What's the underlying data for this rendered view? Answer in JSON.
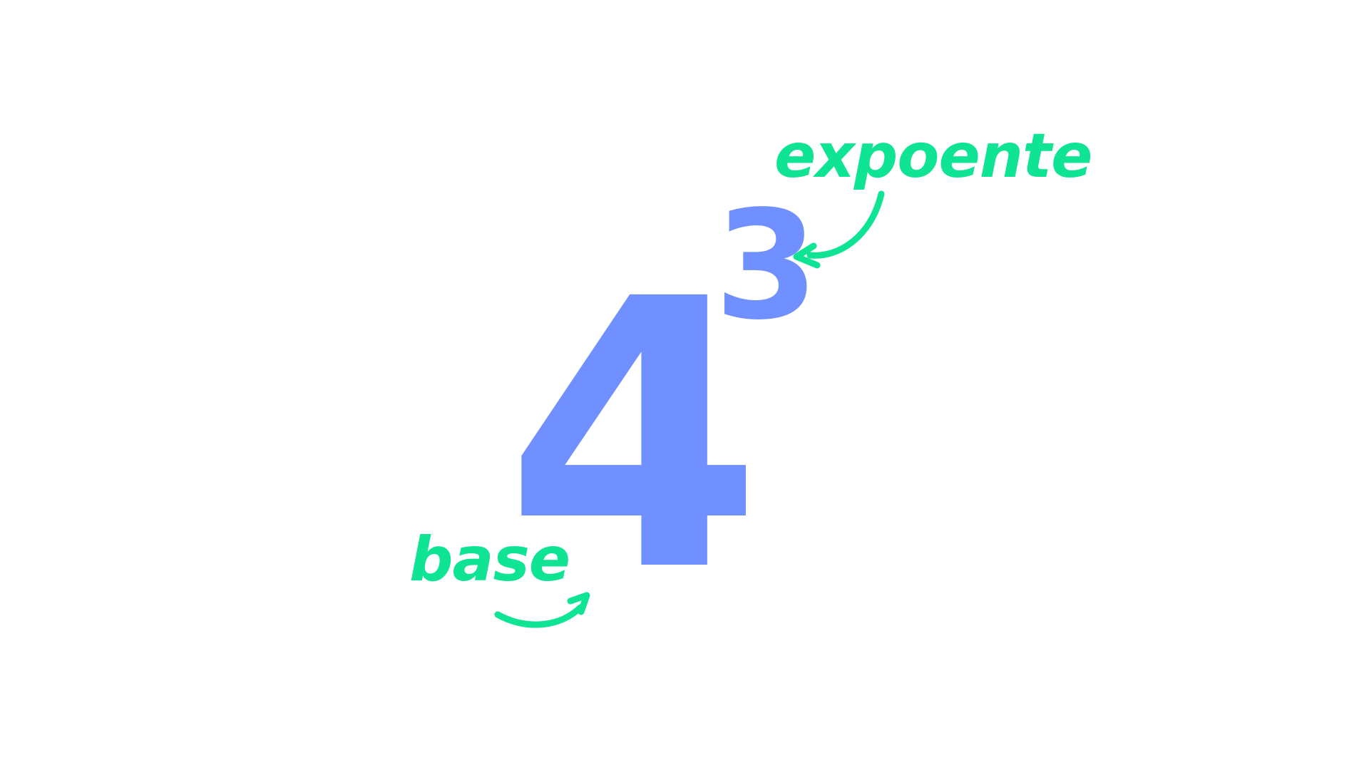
{
  "expression": {
    "base": "4",
    "exponent": "3"
  },
  "labels": {
    "exponent": "expoente",
    "base": "base"
  },
  "colors": {
    "digits": "#7190FF",
    "labels": "#0FE394",
    "background": "#FFFFFF"
  },
  "icons": {
    "exponent_arrow": "curved-arrow-icon",
    "base_arrow": "curved-arrow-icon"
  }
}
